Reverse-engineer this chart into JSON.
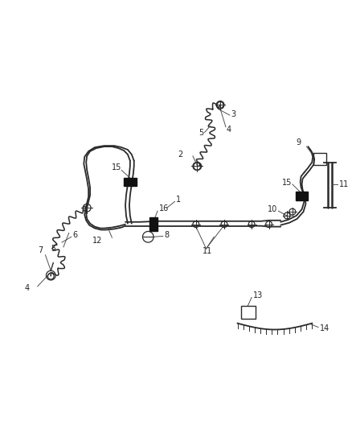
{
  "bg_color": "#ffffff",
  "line_color": "#2a2a2a",
  "figsize": [
    4.38,
    5.33
  ],
  "dpi": 100,
  "label_fs": 7.0,
  "lw_tube": 1.3,
  "lw_hose": 1.1,
  "lw_leader": 0.7
}
